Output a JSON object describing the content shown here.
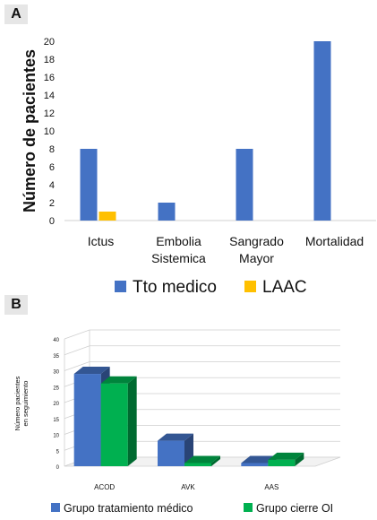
{
  "chart_data": [
    {
      "panel_label": "A",
      "type": "bar",
      "categories": [
        "Ictus",
        "Embolia Sistemica",
        "Sangrado Mayor",
        "Mortalidad"
      ],
      "category_lines": [
        [
          "Ictus"
        ],
        [
          "Embolia",
          "Sistemica"
        ],
        [
          "Sangrado",
          "Mayor"
        ],
        [
          "Mortalidad"
        ]
      ],
      "series": [
        {
          "name": "Tto medico",
          "color": "#4472C4",
          "values": [
            8,
            2,
            8,
            20
          ]
        },
        {
          "name": "LAAC",
          "color": "#FFC000",
          "values": [
            1,
            0,
            0,
            0
          ]
        }
      ],
      "ylabel": "Número de pacientes",
      "ylim": [
        0,
        20
      ],
      "yticks": [
        "0",
        "2",
        "4",
        "6",
        "8",
        "10",
        "12",
        "14",
        "16",
        "18",
        "20"
      ],
      "legend_position": "bottom",
      "grid": false
    },
    {
      "panel_label": "B",
      "type": "bar",
      "style": "3d",
      "categories": [
        "ACOD",
        "AVK",
        "AAS"
      ],
      "series": [
        {
          "name": "Grupo tratamiento médico",
          "color": "#4472C4",
          "values": [
            29,
            8,
            1
          ]
        },
        {
          "name": "Grupo cierre OI",
          "color": "#00B050",
          "values": [
            26,
            1,
            2
          ]
        }
      ],
      "ylabel": "Número pacientes en seguimiento",
      "ylim": [
        0,
        40
      ],
      "yticks": [
        "0",
        "5",
        "10",
        "15",
        "20",
        "25",
        "30",
        "35",
        "40"
      ],
      "legend_position": "bottom",
      "grid": true
    }
  ]
}
